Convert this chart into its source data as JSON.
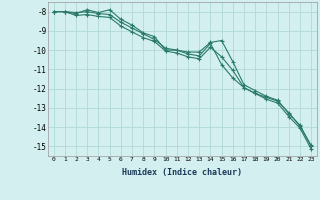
{
  "xlabel": "Humidex (Indice chaleur)",
  "ylabel": "",
  "background_color": "#d4efef",
  "grid_color": "#b0d8d8",
  "line_color": "#2a7a6a",
  "xlim": [
    -0.5,
    23.5
  ],
  "ylim": [
    -15.5,
    -7.5
  ],
  "yticks": [
    -8,
    -9,
    -10,
    -11,
    -12,
    -13,
    -14,
    -15
  ],
  "xticks": [
    0,
    1,
    2,
    3,
    4,
    5,
    6,
    7,
    8,
    9,
    10,
    11,
    12,
    13,
    14,
    15,
    16,
    17,
    18,
    19,
    20,
    21,
    22,
    23
  ],
  "series1_x": [
    0,
    1,
    2,
    3,
    4,
    5,
    6,
    7,
    8,
    9,
    10,
    11,
    12,
    13,
    14,
    15,
    16,
    17,
    18,
    19,
    20,
    21,
    22,
    23
  ],
  "series1_y": [
    -8.0,
    -8.0,
    -8.1,
    -7.9,
    -8.05,
    -7.9,
    -8.4,
    -8.7,
    -9.1,
    -9.3,
    -10.0,
    -10.0,
    -10.1,
    -10.1,
    -9.6,
    -9.5,
    -10.6,
    -11.8,
    -12.1,
    -12.4,
    -12.6,
    -13.3,
    -13.9,
    -15.0
  ],
  "series2_x": [
    0,
    1,
    2,
    3,
    4,
    5,
    6,
    7,
    8,
    9,
    10,
    11,
    12,
    13,
    14,
    15,
    16,
    17,
    18,
    19,
    20,
    21,
    22,
    23
  ],
  "series2_y": [
    -8.0,
    -8.0,
    -8.2,
    -8.15,
    -8.25,
    -8.3,
    -8.75,
    -9.05,
    -9.35,
    -9.55,
    -10.05,
    -10.15,
    -10.35,
    -10.45,
    -9.85,
    -10.35,
    -11.05,
    -11.95,
    -12.25,
    -12.55,
    -12.75,
    -13.45,
    -14.05,
    -15.15
  ],
  "series3_x": [
    0,
    1,
    2,
    3,
    4,
    5,
    6,
    7,
    8,
    9,
    10,
    11,
    12,
    13,
    14,
    15,
    16,
    17,
    18,
    19,
    20,
    21,
    22,
    23
  ],
  "series3_y": [
    -8.0,
    -8.0,
    -8.05,
    -8.0,
    -8.1,
    -8.15,
    -8.55,
    -8.85,
    -9.15,
    -9.45,
    -9.9,
    -10.0,
    -10.2,
    -10.3,
    -9.65,
    -10.75,
    -11.45,
    -11.95,
    -12.25,
    -12.45,
    -12.65,
    -13.25,
    -13.95,
    -14.95
  ]
}
